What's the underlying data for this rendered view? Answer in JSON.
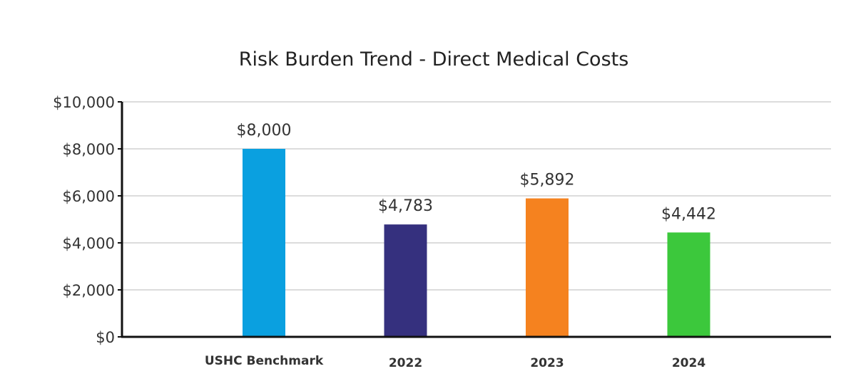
{
  "chart_data": {
    "type": "bar",
    "title": "Risk Burden Trend - Direct Medical Costs",
    "xlabel": "",
    "ylabel": "",
    "categories": [
      "USHC Benchmark",
      "2022",
      "2023",
      "2024"
    ],
    "values": [
      8000,
      4783,
      5892,
      4442
    ],
    "data_labels": [
      "$8,000",
      "$4,783",
      "$5,892",
      "$4,442"
    ],
    "colors": [
      "#0aa0e0",
      "#35307e",
      "#f5821f",
      "#3cc83c"
    ],
    "ylim": [
      0,
      10000
    ],
    "yticks": [
      0,
      2000,
      4000,
      6000,
      8000,
      10000
    ],
    "ytick_labels": [
      "$0",
      "$2,000",
      "$4,000",
      "$6,000",
      "$8,000",
      "$10,000"
    ],
    "grid": true,
    "legend": "none"
  }
}
